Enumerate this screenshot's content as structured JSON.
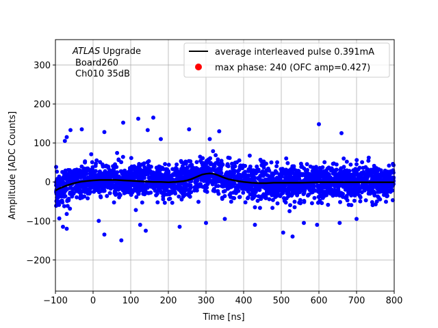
{
  "chart_data": {
    "type": "scatter",
    "xlabel": "Time [ns]",
    "ylabel": "Amplitude [ADC Counts]",
    "xlim": [
      -100,
      800
    ],
    "ylim": [
      -280,
      365
    ],
    "xticks": [
      -100,
      0,
      100,
      200,
      300,
      400,
      500,
      600,
      700,
      800
    ],
    "xtick_labels": [
      "−100",
      "0",
      "100",
      "200",
      "300",
      "400",
      "500",
      "600",
      "700",
      "800"
    ],
    "yticks": [
      -200,
      -100,
      0,
      100,
      200,
      300
    ],
    "ytick_labels": [
      "−200",
      "−100",
      "0",
      "100",
      "200",
      "300"
    ],
    "grid": true,
    "legend_position": "top-right",
    "annotation": {
      "line1_italic": "ATLAS",
      "line1_rest": " Upgrade",
      "line2": "Board260",
      "line3": "Ch010 35dB"
    },
    "series": [
      {
        "name": "average interleaved pulse 0.391mA",
        "kind": "line",
        "color": "#000000",
        "x": [
          -100,
          -90,
          -80,
          -70,
          -60,
          -50,
          -40,
          -30,
          -20,
          -10,
          0,
          20,
          40,
          60,
          80,
          100,
          120,
          140,
          160,
          180,
          200,
          220,
          240,
          250,
          260,
          270,
          280,
          290,
          300,
          310,
          320,
          330,
          340,
          350,
          360,
          380,
          400,
          420,
          440,
          460,
          480,
          500,
          550,
          600,
          650,
          700,
          750,
          800
        ],
        "y": [
          -22,
          -17,
          -13,
          -9,
          -6,
          -3,
          -1,
          1,
          2,
          3,
          4,
          5,
          5,
          5,
          4,
          3,
          2,
          1,
          0,
          0,
          -1,
          0,
          2,
          4,
          7,
          11,
          15,
          19,
          21,
          22,
          21,
          18,
          14,
          10,
          7,
          3,
          0,
          -2,
          -3,
          -3,
          -2,
          -2,
          -2,
          -1,
          -1,
          -1,
          -1,
          -1
        ]
      },
      {
        "name": "samples",
        "kind": "scatter",
        "color": "#0000ff",
        "x_range": [
          -100,
          800
        ],
        "noise_sigma": 22,
        "outliers": [
          [
            120,
            162
          ],
          [
            160,
            165
          ],
          [
            145,
            133
          ],
          [
            -30,
            135
          ],
          [
            -60,
            133
          ],
          [
            80,
            152
          ],
          [
            255,
            135
          ],
          [
            335,
            130
          ],
          [
            310,
            110
          ],
          [
            600,
            148
          ],
          [
            660,
            125
          ],
          [
            -75,
            105
          ],
          [
            -70,
            115
          ],
          [
            180,
            110
          ],
          [
            30,
            128
          ],
          [
            -80,
            -115
          ],
          [
            -70,
            -120
          ],
          [
            75,
            -150
          ],
          [
            30,
            -135
          ],
          [
            140,
            -125
          ],
          [
            505,
            -130
          ],
          [
            530,
            -140
          ],
          [
            595,
            -110
          ],
          [
            300,
            -105
          ],
          [
            430,
            -110
          ],
          [
            230,
            -115
          ],
          [
            655,
            -105
          ],
          [
            560,
            -105
          ],
          [
            700,
            -95
          ],
          [
            350,
            -95
          ],
          [
            15,
            -100
          ],
          [
            125,
            -110
          ]
        ]
      },
      {
        "name": "max phase: 240 (OFC amp=0.427)",
        "kind": "marker",
        "color": "#ff0000",
        "x": [],
        "y": []
      }
    ]
  }
}
